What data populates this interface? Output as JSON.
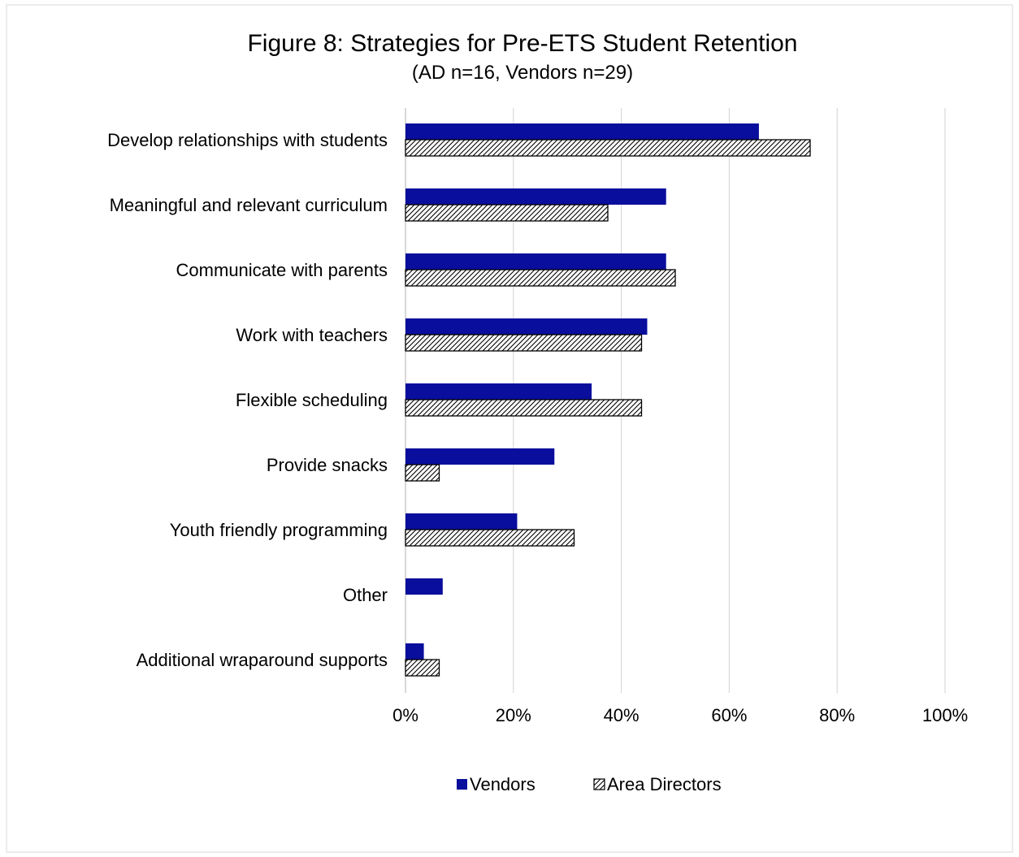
{
  "chart_data": {
    "type": "bar",
    "orientation": "horizontal",
    "title": "Figure 8: Strategies for Pre-ETS Student Retention",
    "subtitle": "(AD n=16, Vendors n=29)",
    "categories": [
      "Develop relationships with students",
      "Meaningful and relevant curriculum",
      "Communicate with parents",
      "Work with teachers",
      "Flexible scheduling",
      "Provide snacks",
      "Youth friendly programming",
      "Other",
      "Additional wraparound supports"
    ],
    "series": [
      {
        "name": "Vendors",
        "color": "#0a0e9c",
        "pattern": "solid",
        "values": [
          0.655,
          0.483,
          0.483,
          0.448,
          0.345,
          0.276,
          0.207,
          0.069,
          0.034
        ]
      },
      {
        "name": "Area Directors",
        "color": "#000000",
        "pattern": "hatched",
        "values": [
          0.75,
          0.375,
          0.5,
          0.4375,
          0.4375,
          0.0625,
          0.3125,
          0,
          0.0625
        ]
      }
    ],
    "xlim": [
      0,
      1
    ],
    "xticks": [
      "0%",
      "20%",
      "40%",
      "60%",
      "80%",
      "100%"
    ],
    "grid": true,
    "legend_position": "bottom"
  }
}
